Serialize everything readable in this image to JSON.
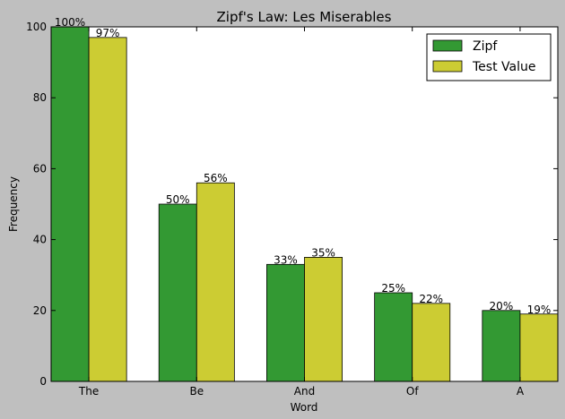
{
  "chart_data": {
    "type": "bar",
    "title": "Zipf's Law: Les Miserables",
    "xlabel": "Word",
    "ylabel": "Frequency",
    "categories": [
      "The",
      "Be",
      "And",
      "Of",
      "A"
    ],
    "ylim": [
      0,
      100
    ],
    "yticks": [
      0,
      20,
      40,
      60,
      80,
      100
    ],
    "grid": false,
    "legend_position": "top-right",
    "series": [
      {
        "name": "Zipf",
        "color": "#339933",
        "values": [
          100,
          50,
          33,
          25,
          20
        ],
        "labels": [
          "100%",
          "50%",
          "33%",
          "25%",
          "20%"
        ]
      },
      {
        "name": "Test Value",
        "color": "#cccc33",
        "values": [
          97,
          56,
          35,
          22,
          19
        ],
        "labels": [
          "97%",
          "56%",
          "35%",
          "22%",
          "19%"
        ]
      }
    ]
  }
}
